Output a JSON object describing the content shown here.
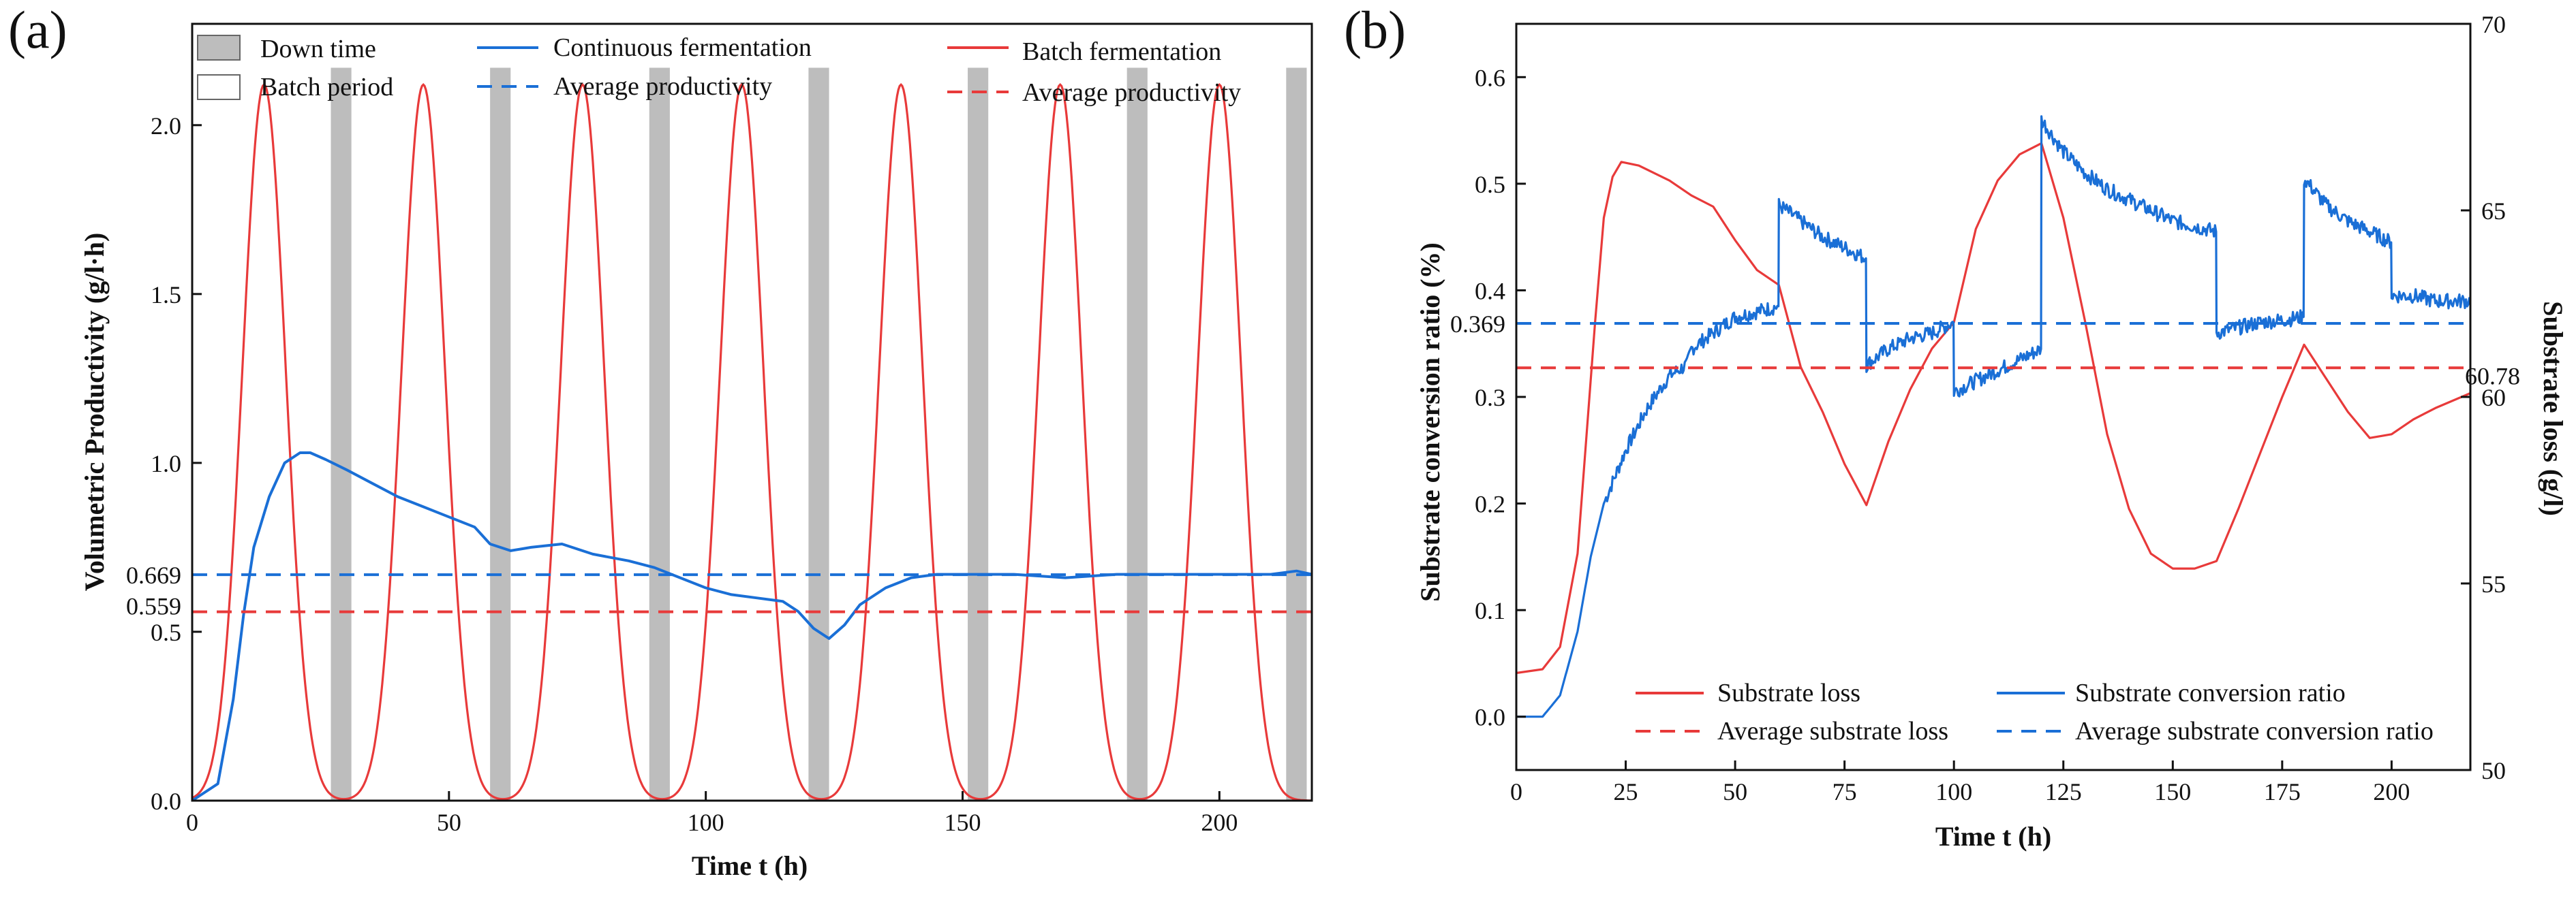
{
  "chart_data": [
    {
      "panel": "(a)",
      "type": "line",
      "xlabel": "Time t (h)",
      "ylabel": "Volumetric Productivity (g/l·h)",
      "xlim": [
        0,
        218
      ],
      "ylim": [
        0,
        2.3
      ],
      "x_ticks": [
        "0",
        "50",
        "100",
        "150",
        "200"
      ],
      "y_ticks": [
        "0.0",
        "0.5",
        "1.0",
        "1.5",
        "2.0"
      ],
      "extra_y_ticks": [
        "0.669",
        "0.559"
      ],
      "legend": {
        "down_time": "Down time",
        "batch_period": "Batch period",
        "continuous": "Continuous fermentation",
        "continuous_avg": "Average productivity",
        "batch": "Batch fermentation",
        "batch_avg": "Average productivity"
      },
      "down_time_intervals": [
        [
          27,
          31
        ],
        [
          58,
          62
        ],
        [
          89,
          93
        ],
        [
          120,
          124
        ],
        [
          151,
          155
        ],
        [
          182,
          186
        ],
        [
          213,
          217
        ]
      ],
      "batch_peaks": [
        {
          "t": 14,
          "value": 2.12
        },
        {
          "t": 45,
          "value": 2.12
        },
        {
          "t": 76,
          "value": 2.12
        },
        {
          "t": 107,
          "value": 2.12
        },
        {
          "t": 138,
          "value": 2.12
        },
        {
          "t": 169,
          "value": 2.12
        },
        {
          "t": 200,
          "value": 2.12
        }
      ],
      "continuous_series": {
        "name": "Continuous fermentation",
        "x": [
          0,
          5,
          8,
          10,
          12,
          15,
          18,
          21,
          23,
          26,
          30,
          35,
          40,
          45,
          50,
          55,
          58,
          62,
          66,
          72,
          78,
          85,
          90,
          95,
          100,
          105,
          110,
          115,
          118,
          121,
          124,
          127,
          130,
          135,
          140,
          145,
          150,
          160,
          170,
          180,
          190,
          200,
          210,
          215,
          218
        ],
        "y": [
          0.0,
          0.05,
          0.3,
          0.55,
          0.75,
          0.9,
          1.0,
          1.03,
          1.03,
          1.01,
          0.98,
          0.94,
          0.9,
          0.87,
          0.84,
          0.81,
          0.76,
          0.74,
          0.75,
          0.76,
          0.73,
          0.71,
          0.69,
          0.66,
          0.63,
          0.61,
          0.6,
          0.59,
          0.56,
          0.51,
          0.48,
          0.52,
          0.58,
          0.63,
          0.66,
          0.67,
          0.67,
          0.67,
          0.66,
          0.67,
          0.67,
          0.67,
          0.67,
          0.68,
          0.67
        ]
      },
      "continuous_average": 0.669,
      "batch_average": 0.559
    },
    {
      "panel": "(b)",
      "type": "line",
      "xlabel": "Time t (h)",
      "ylabel_left": "Substrate conversion ratio (%)",
      "ylabel_right": "Substrate loss (g/l)",
      "xlim": [
        0,
        218
      ],
      "ylim_left": [
        -0.05,
        0.65
      ],
      "ylim_right": [
        50,
        70
      ],
      "x_ticks": [
        "0",
        "25",
        "50",
        "75",
        "100",
        "125",
        "150",
        "175",
        "200"
      ],
      "y_ticks_left": [
        "0.0",
        "0.1",
        "0.2",
        "0.3",
        "0.4",
        "0.5",
        "0.6"
      ],
      "y_ticks_right": [
        "50",
        "55",
        "60",
        "65",
        "70"
      ],
      "extra_y_tick_left": "0.369",
      "extra_y_tick_right": "60.78",
      "legend": {
        "loss": "Substrate loss",
        "loss_avg": "Average substrate loss",
        "conversion": "Substrate conversion ratio",
        "conversion_avg": "Average substrate conversion ratio"
      },
      "substrate_loss_series": {
        "name": "Substrate loss",
        "axis": "right",
        "x": [
          0,
          6,
          10,
          14,
          18,
          20,
          22,
          24,
          28,
          35,
          40,
          45,
          50,
          55,
          60,
          65,
          70,
          75,
          80,
          85,
          90,
          95,
          100,
          105,
          110,
          115,
          120,
          125,
          130,
          135,
          140,
          145,
          150,
          155,
          160,
          165,
          170,
          175,
          180,
          185,
          190,
          195,
          200,
          205,
          210,
          218
        ],
        "y": [
          52.6,
          52.7,
          53.3,
          55.8,
          62.0,
          64.8,
          65.9,
          66.3,
          66.2,
          65.8,
          65.4,
          65.1,
          64.2,
          63.4,
          63.0,
          60.8,
          59.6,
          58.2,
          57.1,
          58.8,
          60.2,
          61.3,
          62.0,
          64.5,
          65.8,
          66.5,
          66.8,
          64.8,
          62.0,
          59.0,
          57.0,
          55.8,
          55.4,
          55.4,
          55.6,
          57.0,
          58.5,
          60.0,
          61.4,
          60.5,
          59.6,
          58.9,
          59.0,
          59.4,
          59.7,
          60.1
        ]
      },
      "conversion_series": {
        "name": "Substrate conversion ratio",
        "axis": "left",
        "x": [
          0,
          6,
          10,
          14,
          17,
          20,
          25,
          30,
          35,
          39,
          40,
          45,
          50,
          55,
          59.9,
          60,
          65,
          70,
          75,
          79.9,
          80,
          85,
          90,
          95,
          99.9,
          100,
          105,
          110,
          115,
          119.9,
          120,
          125,
          130,
          135,
          140,
          145,
          150,
          155,
          159.9,
          160,
          165,
          170,
          175,
          179.9,
          180,
          185,
          190,
          195,
          199.9,
          200,
          205,
          210,
          215,
          218
        ],
        "y": [
          0.0,
          0.0,
          0.02,
          0.08,
          0.15,
          0.2,
          0.25,
          0.29,
          0.32,
          0.33,
          0.345,
          0.36,
          0.375,
          0.38,
          0.385,
          0.48,
          0.465,
          0.45,
          0.44,
          0.43,
          0.33,
          0.345,
          0.355,
          0.36,
          0.37,
          0.305,
          0.315,
          0.325,
          0.335,
          0.345,
          0.56,
          0.53,
          0.51,
          0.495,
          0.485,
          0.475,
          0.465,
          0.46,
          0.455,
          0.36,
          0.365,
          0.37,
          0.372,
          0.375,
          0.505,
          0.48,
          0.465,
          0.455,
          0.445,
          0.395,
          0.395,
          0.39,
          0.39,
          0.39
        ]
      },
      "conversion_average": 0.369,
      "loss_average": 60.78
    }
  ],
  "panels": {
    "a_label": "(a)",
    "b_label": "(b)"
  }
}
